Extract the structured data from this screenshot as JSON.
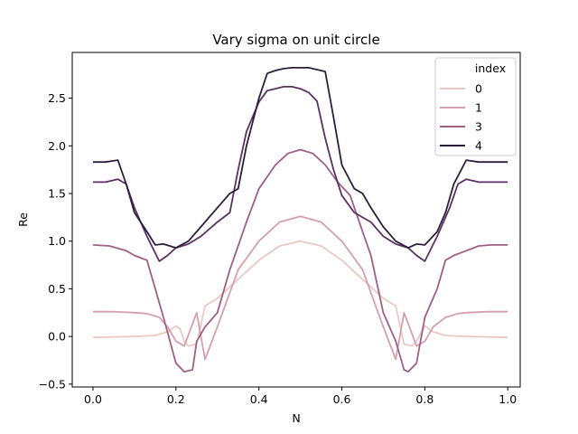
{
  "chart_data": {
    "type": "line",
    "title": "Vary sigma on unit circle",
    "xlabel": "N",
    "ylabel": "Re",
    "xlim": [
      -0.05,
      1.03
    ],
    "ylim": [
      -0.53,
      2.98
    ],
    "xticks": [
      0.0,
      0.2,
      0.4,
      0.6,
      0.8,
      1.0
    ],
    "xtick_labels": [
      "0.0",
      "0.2",
      "0.4",
      "0.6",
      "0.8",
      "1.0"
    ],
    "yticks": [
      -0.5,
      0.0,
      0.5,
      1.0,
      1.5,
      2.0,
      2.5
    ],
    "ytick_labels": [
      "−0.5",
      "0.0",
      "0.5",
      "1.0",
      "1.5",
      "2.0",
      "2.5"
    ],
    "grid": false,
    "legend": {
      "title": "index",
      "placement": "top-right"
    },
    "series": [
      {
        "name": "0",
        "color": "#eac9c2",
        "x": [
          0.0,
          0.1,
          0.15,
          0.18,
          0.2,
          0.21,
          0.22,
          0.23,
          0.25,
          0.27,
          0.3,
          0.35,
          0.4,
          0.45,
          0.5,
          0.55,
          0.6,
          0.65,
          0.7,
          0.73,
          0.75,
          0.77,
          0.78,
          0.8,
          0.82,
          0.85,
          0.9,
          1.0
        ],
        "y": [
          -0.01,
          0.0,
          0.01,
          0.05,
          0.11,
          0.08,
          -0.05,
          -0.1,
          -0.08,
          0.32,
          0.4,
          0.6,
          0.8,
          0.95,
          1.0,
          0.95,
          0.8,
          0.6,
          0.4,
          0.32,
          -0.08,
          -0.1,
          -0.05,
          0.11,
          0.05,
          0.01,
          0.0,
          -0.01
        ]
      },
      {
        "name": "1",
        "color": "#d59faf",
        "x": [
          0.0,
          0.05,
          0.1,
          0.13,
          0.16,
          0.18,
          0.2,
          0.22,
          0.25,
          0.27,
          0.3,
          0.35,
          0.4,
          0.45,
          0.5,
          0.55,
          0.6,
          0.65,
          0.7,
          0.73,
          0.75,
          0.78,
          0.8,
          0.82,
          0.85,
          0.88,
          0.9,
          0.95,
          1.0
        ],
        "y": [
          0.26,
          0.26,
          0.25,
          0.24,
          0.2,
          0.1,
          -0.05,
          -0.1,
          0.25,
          -0.24,
          0.1,
          0.7,
          1.0,
          1.2,
          1.26,
          1.2,
          1.0,
          0.7,
          0.1,
          -0.24,
          0.25,
          -0.1,
          -0.05,
          0.1,
          0.2,
          0.24,
          0.25,
          0.26,
          0.26
        ]
      },
      {
        "name": "3",
        "color": "#a05f85",
        "x": [
          0.0,
          0.04,
          0.08,
          0.1,
          0.13,
          0.15,
          0.17,
          0.2,
          0.22,
          0.24,
          0.25,
          0.27,
          0.3,
          0.33,
          0.37,
          0.4,
          0.44,
          0.47,
          0.5,
          0.53,
          0.56,
          0.59,
          0.62,
          0.65,
          0.67,
          0.7,
          0.73,
          0.75,
          0.76,
          0.78,
          0.8,
          0.83,
          0.85,
          0.87,
          0.9,
          0.93,
          0.96,
          1.0
        ],
        "y": [
          0.96,
          0.95,
          0.9,
          0.85,
          0.8,
          0.5,
          0.2,
          -0.28,
          -0.37,
          -0.35,
          -0.05,
          0.1,
          0.25,
          0.7,
          1.2,
          1.55,
          1.8,
          1.92,
          1.96,
          1.92,
          1.8,
          1.62,
          1.48,
          1.1,
          0.85,
          0.25,
          -0.05,
          -0.35,
          -0.37,
          -0.28,
          0.2,
          0.5,
          0.8,
          0.85,
          0.9,
          0.95,
          0.96,
          0.96
        ]
      },
      {
        "name": "4",
        "color": "#5b3163",
        "x": [
          0.0,
          0.03,
          0.06,
          0.08,
          0.1,
          0.13,
          0.16,
          0.18,
          0.2,
          0.23,
          0.26,
          0.3,
          0.33,
          0.35,
          0.37,
          0.4,
          0.42,
          0.44,
          0.46,
          0.48,
          0.5,
          0.52,
          0.54,
          0.56,
          0.58,
          0.6,
          0.63,
          0.65,
          0.67,
          0.7,
          0.73,
          0.76,
          0.78,
          0.8,
          0.83,
          0.86,
          0.88,
          0.9,
          0.93,
          0.96,
          1.0
        ],
        "y": [
          1.62,
          1.62,
          1.65,
          1.6,
          1.35,
          1.05,
          0.79,
          0.85,
          0.93,
          0.97,
          1.05,
          1.2,
          1.3,
          1.75,
          2.15,
          2.46,
          2.58,
          2.6,
          2.62,
          2.62,
          2.6,
          2.56,
          2.47,
          2.08,
          1.75,
          1.48,
          1.3,
          1.25,
          1.2,
          1.05,
          0.97,
          0.93,
          0.85,
          0.79,
          1.05,
          1.35,
          1.6,
          1.65,
          1.62,
          1.62,
          1.62
        ]
      },
      {
        "name": "4",
        "color": "#2d1e3e",
        "x": [
          0.0,
          0.03,
          0.06,
          0.08,
          0.1,
          0.13,
          0.15,
          0.17,
          0.2,
          0.23,
          0.26,
          0.3,
          0.33,
          0.35,
          0.37,
          0.4,
          0.42,
          0.44,
          0.46,
          0.48,
          0.5,
          0.52,
          0.54,
          0.56,
          0.58,
          0.6,
          0.63,
          0.65,
          0.67,
          0.7,
          0.73,
          0.76,
          0.78,
          0.8,
          0.83,
          0.85,
          0.87,
          0.9,
          0.93,
          0.96,
          1.0
        ],
        "y": [
          1.83,
          1.83,
          1.85,
          1.6,
          1.3,
          1.1,
          0.96,
          0.97,
          0.93,
          1.0,
          1.15,
          1.35,
          1.5,
          1.55,
          2.0,
          2.5,
          2.76,
          2.79,
          2.81,
          2.82,
          2.82,
          2.82,
          2.8,
          2.78,
          2.3,
          1.8,
          1.55,
          1.5,
          1.35,
          1.15,
          1.0,
          0.93,
          0.97,
          0.96,
          1.1,
          1.3,
          1.6,
          1.85,
          1.83,
          1.83,
          1.83
        ]
      }
    ]
  }
}
